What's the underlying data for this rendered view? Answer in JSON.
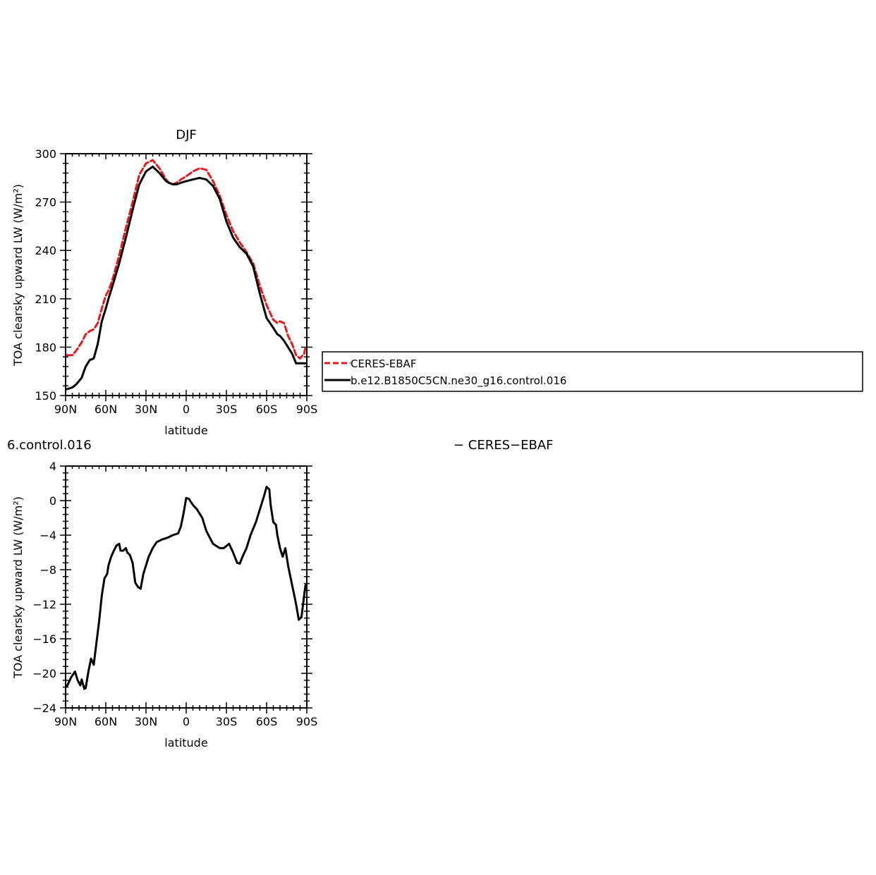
{
  "chart_data": [
    {
      "type": "line",
      "title": "DJF",
      "xlabel": "latitude",
      "ylabel": "TOA clearsky upward LW (W/m²)",
      "xlim": [
        90,
        -90
      ],
      "ylim": [
        150,
        300
      ],
      "xticks": [
        {
          "value": 90,
          "label": "90N"
        },
        {
          "value": 60,
          "label": "60N"
        },
        {
          "value": 30,
          "label": "30N"
        },
        {
          "value": 0,
          "label": "0"
        },
        {
          "value": -30,
          "label": "30S"
        },
        {
          "value": -60,
          "label": "60S"
        },
        {
          "value": -90,
          "label": "90S"
        }
      ],
      "yticks": [
        {
          "value": 150,
          "label": "150"
        },
        {
          "value": 180,
          "label": "180"
        },
        {
          "value": 210,
          "label": "210"
        },
        {
          "value": 240,
          "label": "240"
        },
        {
          "value": 270,
          "label": "270"
        },
        {
          "value": 300,
          "label": "300"
        }
      ],
      "legend_position": "right",
      "series": [
        {
          "name": "CERES-EBAF",
          "color": "#e41a1c",
          "dash": "dashed",
          "x": [
            89,
            85,
            82,
            78,
            75,
            72,
            69,
            66,
            63,
            60,
            58,
            55,
            50,
            45,
            40,
            35,
            30,
            25,
            20,
            15,
            13,
            10,
            7,
            4,
            0,
            -5,
            -10,
            -15,
            -20,
            -25,
            -30,
            -35,
            -40,
            -45,
            -50,
            -55,
            -60,
            -65,
            -68,
            -70,
            -73,
            -76,
            -79,
            -82,
            -85,
            -88,
            -89
          ],
          "y": [
            175,
            175,
            178,
            183,
            188,
            190,
            191,
            195,
            204,
            212,
            215,
            222,
            237,
            254,
            270,
            287,
            294,
            296,
            291,
            284,
            282,
            281,
            282,
            284,
            286,
            289,
            291,
            290,
            283,
            274,
            262,
            252,
            245,
            239,
            232,
            218,
            206,
            197,
            195,
            196,
            195,
            187,
            182,
            175,
            173,
            176,
            180
          ]
        },
        {
          "name": "b.e12.B1850C5CN.ne30_g16.control.016",
          "color": "#000000",
          "dash": "solid",
          "x": [
            89,
            85,
            82,
            78,
            75,
            72,
            69,
            66,
            63,
            60,
            58,
            55,
            50,
            45,
            40,
            35,
            30,
            25,
            20,
            15,
            13,
            10,
            7,
            4,
            0,
            -5,
            -10,
            -15,
            -20,
            -25,
            -30,
            -35,
            -40,
            -45,
            -50,
            -55,
            -60,
            -65,
            -68,
            -70,
            -73,
            -76,
            -79,
            -82,
            -85,
            -88,
            -89
          ],
          "y": [
            154,
            155,
            157,
            161,
            168,
            172,
            173,
            182,
            196,
            204,
            210,
            218,
            232,
            248,
            265,
            281,
            289,
            292,
            288,
            283,
            282,
            281,
            281,
            282,
            283,
            284,
            285,
            284,
            280,
            272,
            258,
            248,
            242,
            238,
            230,
            213,
            198,
            192,
            188,
            187,
            184,
            180,
            176,
            170,
            170,
            170,
            170
          ]
        }
      ]
    },
    {
      "type": "line",
      "title": "6.control.016",
      "subtitle": "− CERES−EBAF",
      "xlabel": "latitude",
      "ylabel": "TOA clearsky upward LW (W/m²)",
      "xlim": [
        90,
        -90
      ],
      "ylim": [
        -24,
        4
      ],
      "xticks": [
        {
          "value": 90,
          "label": "90N"
        },
        {
          "value": 60,
          "label": "60N"
        },
        {
          "value": 30,
          "label": "30N"
        },
        {
          "value": 0,
          "label": "0"
        },
        {
          "value": -30,
          "label": "30S"
        },
        {
          "value": -60,
          "label": "60S"
        },
        {
          "value": -90,
          "label": "90S"
        }
      ],
      "yticks": [
        {
          "value": -24,
          "label": "−24"
        },
        {
          "value": -20,
          "label": "−20"
        },
        {
          "value": -16,
          "label": "−16"
        },
        {
          "value": -12,
          "label": "−12"
        },
        {
          "value": -8,
          "label": "−8"
        },
        {
          "value": -4,
          "label": "−4"
        },
        {
          "value": 0,
          "label": "0"
        },
        {
          "value": 4,
          "label": "4"
        }
      ],
      "series": [
        {
          "color": "#000000",
          "x": [
            89,
            86,
            83,
            81,
            79,
            78,
            76,
            75,
            73,
            71,
            69,
            67,
            65,
            63,
            61,
            59,
            58,
            56,
            54,
            52,
            50,
            49,
            47,
            45,
            44,
            42,
            40,
            38,
            36,
            34,
            32,
            30,
            28,
            25,
            22,
            18,
            14,
            10,
            6,
            4,
            2,
            0,
            -2,
            -5,
            -8,
            -12,
            -15,
            -20,
            -25,
            -28,
            -32,
            -35,
            -38,
            -40,
            -42,
            -45,
            -48,
            -52,
            -55,
            -58,
            -60,
            -62,
            -63,
            -65,
            -67,
            -68,
            -70,
            -72,
            -74,
            -76,
            -78,
            -80,
            -82,
            -84,
            -86,
            -88,
            -89
          ],
          "y": [
            -21.5,
            -20.5,
            -19.8,
            -20.8,
            -21.4,
            -20.7,
            -21.8,
            -21.7,
            -19.8,
            -18.3,
            -19.0,
            -16.5,
            -14.0,
            -11.0,
            -9.0,
            -8.5,
            -7.5,
            -6.5,
            -5.8,
            -5.2,
            -5.0,
            -5.8,
            -5.8,
            -5.5,
            -6.0,
            -6.3,
            -7.2,
            -9.5,
            -10.0,
            -10.2,
            -8.5,
            -7.5,
            -6.5,
            -5.5,
            -4.8,
            -4.5,
            -4.3,
            -4.0,
            -3.8,
            -3.0,
            -1.5,
            0.3,
            0.2,
            -0.5,
            -1.0,
            -2.0,
            -3.5,
            -5.0,
            -5.5,
            -5.5,
            -5.0,
            -6.0,
            -7.2,
            -7.3,
            -6.5,
            -5.5,
            -4.0,
            -2.5,
            -1.0,
            0.5,
            1.6,
            1.3,
            -0.5,
            -2.5,
            -2.8,
            -4.0,
            -5.5,
            -6.5,
            -5.5,
            -7.5,
            -9.0,
            -10.5,
            -12.0,
            -13.8,
            -13.5,
            -11.0,
            -9.8
          ]
        }
      ]
    }
  ]
}
